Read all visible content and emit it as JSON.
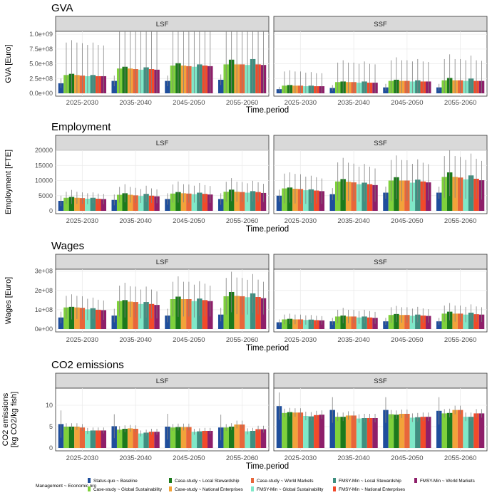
{
  "x_title": "Time.period",
  "legend": {
    "title": "Management ~ Economic pro",
    "items": [
      {
        "label": "Status-quo ~ Baseline",
        "color": "#1f4e9c"
      },
      {
        "label": "Case-study ~ Global Sustainability",
        "color": "#7fd13b"
      },
      {
        "label": "Case-study ~ Local Stewardship",
        "color": "#1c7a1c"
      },
      {
        "label": "Case-study ~ National Enterprises",
        "color": "#f2a33a"
      },
      {
        "label": "Case-study ~ World Markets",
        "color": "#e8663a"
      },
      {
        "label": "FMSY-Min ~ Global Sustainability",
        "color": "#7fe8c8"
      },
      {
        "label": "FMSY-Min ~ Local Stewardship",
        "color": "#3f8f80"
      },
      {
        "label": "FMSY-Min ~ National Enterprises",
        "color": "#f24a2a"
      },
      {
        "label": "FMSY-Min ~ World Markets",
        "color": "#8e1f6a"
      }
    ]
  },
  "chart_data": [
    {
      "type": "bar",
      "title": "GVA",
      "ylabel": "GVA [Euro]",
      "ylim": [
        0,
        1050000000.0
      ],
      "yticks": [
        0,
        250000000.0,
        500000000.0,
        750000000.0,
        1000000000.0
      ],
      "yticklabels": [
        "0.0e+00",
        "2.5e+08",
        "5.0e+08",
        "7.5e+08",
        "1.0e+09"
      ],
      "categories": [
        "2025-2030",
        "2035-2040",
        "2045-2050",
        "2055-2060"
      ],
      "facets": [
        {
          "name": "LSF",
          "values": [
            [
              170000000.0,
              310000000.0,
              330000000.0,
              310000000.0,
              300000000.0,
              290000000.0,
              310000000.0,
              290000000.0,
              290000000.0
            ],
            [
              210000000.0,
              420000000.0,
              450000000.0,
              420000000.0,
              410000000.0,
              400000000.0,
              440000000.0,
              410000000.0,
              400000000.0
            ],
            [
              210000000.0,
              470000000.0,
              510000000.0,
              470000000.0,
              460000000.0,
              450000000.0,
              490000000.0,
              470000000.0,
              460000000.0
            ],
            [
              230000000.0,
              490000000.0,
              570000000.0,
              490000000.0,
              490000000.0,
              480000000.0,
              580000000.0,
              490000000.0,
              480000000.0
            ]
          ],
          "err": [
            [
              80000000.0,
              550000000.0,
              570000000.0,
              550000000.0,
              550000000.0,
              530000000.0,
              550000000.0,
              530000000.0,
              520000000.0
            ],
            [
              90000000.0,
              800000000.0,
              830000000.0,
              800000000.0,
              780000000.0,
              760000000.0,
              800000000.0,
              760000000.0,
              740000000.0
            ],
            [
              90000000.0,
              880000000.0,
              950000000.0,
              880000000.0,
              860000000.0,
              840000000.0,
              900000000.0,
              840000000.0,
              820000000.0
            ],
            [
              90000000.0,
              880000000.0,
              970000000.0,
              860000000.0,
              860000000.0,
              840000000.0,
              900000000.0,
              860000000.0,
              820000000.0
            ]
          ]
        },
        {
          "name": "SSF",
          "values": [
            [
              70000000.0,
              130000000.0,
              140000000.0,
              130000000.0,
              130000000.0,
              120000000.0,
              130000000.0,
              120000000.0,
              120000000.0
            ],
            [
              90000000.0,
              190000000.0,
              200000000.0,
              190000000.0,
              190000000.0,
              180000000.0,
              200000000.0,
              180000000.0,
              180000000.0
            ],
            [
              100000000.0,
              210000000.0,
              230000000.0,
              210000000.0,
              210000000.0,
              200000000.0,
              220000000.0,
              200000000.0,
              200000000.0
            ],
            [
              100000000.0,
              220000000.0,
              260000000.0,
              220000000.0,
              220000000.0,
              210000000.0,
              250000000.0,
              210000000.0,
              210000000.0
            ]
          ],
          "err": [
            [
              40000000.0,
              240000000.0,
              250000000.0,
              240000000.0,
              240000000.0,
              230000000.0,
              230000000.0,
              220000000.0,
              220000000.0
            ],
            [
              50000000.0,
              330000000.0,
              360000000.0,
              330000000.0,
              330000000.0,
              320000000.0,
              340000000.0,
              320000000.0,
              310000000.0
            ],
            [
              60000000.0,
              350000000.0,
              380000000.0,
              350000000.0,
              350000000.0,
              340000000.0,
              360000000.0,
              340000000.0,
              330000000.0
            ],
            [
              60000000.0,
              360000000.0,
              400000000.0,
              360000000.0,
              360000000.0,
              350000000.0,
              390000000.0,
              350000000.0,
              340000000.0
            ]
          ]
        }
      ]
    },
    {
      "type": "bar",
      "title": "Employment",
      "ylabel": "Employment [FTE]",
      "ylim": [
        0,
        20000
      ],
      "yticks": [
        0,
        5000,
        10000,
        15000,
        20000
      ],
      "yticklabels": [
        "0",
        "5000",
        "10000",
        "15000",
        "20000"
      ],
      "categories": [
        "2025-2030",
        "2035-2040",
        "2045-2050",
        "2055-2060"
      ],
      "facets": [
        {
          "name": "LSF",
          "values": [
            [
              3300,
              4300,
              4600,
              4300,
              4200,
              4000,
              4300,
              4000,
              3900
            ],
            [
              3600,
              5300,
              5800,
              5300,
              5100,
              4900,
              5600,
              5000,
              4800
            ],
            [
              3900,
              5700,
              6200,
              5800,
              5700,
              5500,
              6000,
              5600,
              5400
            ],
            [
              3900,
              6300,
              7000,
              6300,
              6200,
              6000,
              6500,
              6200,
              5900
            ]
          ],
          "err": [
            [
              1700,
              2000,
              2300,
              2000,
              1900,
              1800,
              1800,
              1700,
              1700
            ],
            [
              1800,
              2600,
              3000,
              2600,
              2500,
              2300,
              2700,
              2400,
              2300
            ],
            [
              1900,
              3000,
              3500,
              3000,
              3000,
              2800,
              3200,
              2900,
              2800
            ],
            [
              1900,
              3300,
              3800,
              3300,
              3300,
              3100,
              3400,
              3200,
              3000
            ]
          ]
        },
        {
          "name": "SSF",
          "values": [
            [
              5000,
              7400,
              7700,
              7300,
              7200,
              6800,
              7100,
              6700,
              6500
            ],
            [
              5500,
              9700,
              10500,
              9600,
              9400,
              8800,
              9300,
              8800,
              8500
            ],
            [
              6000,
              10000,
              11100,
              10000,
              10000,
              9300,
              10300,
              9700,
              9400
            ],
            [
              6000,
              11200,
              12700,
              11200,
              11000,
              10400,
              11700,
              10600,
              10100
            ]
          ],
          "err": [
            [
              2000,
              4900,
              5000,
              4900,
              4900,
              4500,
              4500,
              4400,
              4200
            ],
            [
              2000,
              6300,
              7000,
              6300,
              6200,
              5800,
              6200,
              5800,
              5500
            ],
            [
              2000,
              6800,
              7200,
              6800,
              6700,
              6200,
              6700,
              6200,
              6000
            ],
            [
              2000,
              6900,
              7800,
              6900,
              6800,
              6400,
              7200,
              6600,
              6400
            ]
          ]
        }
      ]
    },
    {
      "type": "bar",
      "title": "Wages",
      "ylabel": "Wages [Euro]",
      "ylim": [
        0,
        310000000.0
      ],
      "yticks": [
        0,
        100000000.0,
        200000000.0,
        300000000.0
      ],
      "yticklabels": [
        "0e+00",
        "1e+08",
        "2e+08",
        "3e+08"
      ],
      "categories": [
        "2025-2030",
        "2035-2040",
        "2045-2050",
        "2055-2060"
      ],
      "facets": [
        {
          "name": "LSF",
          "values": [
            [
              60000000.0,
              112000000.0,
              115000000.0,
              112000000.0,
              110000000.0,
              102000000.0,
              108000000.0,
              100000000.0,
              98000000.0
            ],
            [
              70000000.0,
              145000000.0,
              150000000.0,
              142000000.0,
              140000000.0,
              130000000.0,
              140000000.0,
              130000000.0,
              125000000.0
            ],
            [
              70000000.0,
              155000000.0,
              168000000.0,
              155000000.0,
              155000000.0,
              145000000.0,
              158000000.0,
              150000000.0,
              145000000.0
            ],
            [
              75000000.0,
              170000000.0,
              192000000.0,
              172000000.0,
              170000000.0,
              165000000.0,
              185000000.0,
              166000000.0,
              160000000.0
            ]
          ],
          "err": [
            [
              30000000.0,
              60000000.0,
              65000000.0,
              60000000.0,
              60000000.0,
              55000000.0,
              55000000.0,
              52000000.0,
              50000000.0
            ],
            [
              35000000.0,
              80000000.0,
              90000000.0,
              80000000.0,
              80000000.0,
              75000000.0,
              80000000.0,
              75000000.0,
              70000000.0
            ],
            [
              35000000.0,
              90000000.0,
              105000000.0,
              90000000.0,
              90000000.0,
              85000000.0,
              90000000.0,
              85000000.0,
              80000000.0
            ],
            [
              35000000.0,
              95000000.0,
              105000000.0,
              95000000.0,
              95000000.0,
              90000000.0,
              100000000.0,
              90000000.0,
              85000000.0
            ]
          ]
        },
        {
          "name": "SSF",
          "values": [
            [
              35000000.0,
              50000000.0,
              53000000.0,
              50000000.0,
              50000000.0,
              47000000.0,
              49000000.0,
              46000000.0,
              45000000.0
            ],
            [
              40000000.0,
              65000000.0,
              70000000.0,
              65000000.0,
              65000000.0,
              60000000.0,
              65000000.0,
              60000000.0,
              58000000.0
            ],
            [
              40000000.0,
              73000000.0,
              78000000.0,
              73000000.0,
              73000000.0,
              69000000.0,
              75000000.0,
              70000000.0,
              68000000.0
            ],
            [
              40000000.0,
              80000000.0,
              90000000.0,
              80000000.0,
              80000000.0,
              75000000.0,
              85000000.0,
              77000000.0,
              75000000.0
            ]
          ],
          "err": [
            [
              15000000.0,
              25000000.0,
              27000000.0,
              25000000.0,
              25000000.0,
              24000000.0,
              24000000.0,
              23000000.0,
              22000000.0
            ],
            [
              18000000.0,
              35000000.0,
              40000000.0,
              35000000.0,
              35000000.0,
              33000000.0,
              35000000.0,
              33000000.0,
              31000000.0
            ],
            [
              18000000.0,
              40000000.0,
              42000000.0,
              40000000.0,
              40000000.0,
              37000000.0,
              40000000.0,
              37000000.0,
              35000000.0
            ],
            [
              18000000.0,
              42000000.0,
              45000000.0,
              42000000.0,
              42000000.0,
              40000000.0,
              43000000.0,
              40000000.0,
              38000000.0
            ]
          ]
        }
      ]
    },
    {
      "type": "bar",
      "title": "CO2 emissions",
      "ylabel": "CO2 emissions\n[kg CO2/kg fish]",
      "ylim": [
        0,
        14
      ],
      "yticks": [
        0,
        5,
        10
      ],
      "yticklabels": [
        "0",
        "5",
        "10"
      ],
      "categories": [
        "2025-2030",
        "2035-2040",
        "2045-2050",
        "2055-2060"
      ],
      "facets": [
        {
          "name": "LSF",
          "values": [
            [
              5.6,
              5.0,
              5.0,
              5.0,
              4.8,
              4.0,
              4.1,
              4.1,
              4.1
            ],
            [
              5.1,
              4.3,
              4.5,
              4.6,
              4.5,
              3.4,
              3.6,
              3.8,
              3.8
            ],
            [
              5.0,
              4.8,
              4.9,
              4.9,
              4.9,
              3.8,
              3.9,
              4.0,
              4.0
            ],
            [
              4.8,
              4.8,
              5.0,
              5.5,
              5.5,
              3.9,
              4.0,
              4.4,
              4.4
            ]
          ],
          "err": [
            [
              3.2,
              0.8,
              0.8,
              0.8,
              0.8,
              0.7,
              0.7,
              0.7,
              0.7
            ],
            [
              2.8,
              0.8,
              0.8,
              0.8,
              0.8,
              0.7,
              0.7,
              0.7,
              0.7
            ],
            [
              3.0,
              0.8,
              0.8,
              0.8,
              0.8,
              0.7,
              0.7,
              0.7,
              0.7
            ],
            [
              3.0,
              0.8,
              0.8,
              0.9,
              0.9,
              0.7,
              0.7,
              0.8,
              0.8
            ]
          ]
        },
        {
          "name": "SSF",
          "values": [
            [
              9.8,
              8.2,
              8.4,
              8.3,
              8.3,
              7.5,
              7.4,
              7.7,
              7.8
            ],
            [
              8.9,
              7.3,
              7.3,
              7.6,
              7.6,
              6.9,
              7.0,
              7.0,
              7.0
            ],
            [
              8.9,
              7.9,
              7.8,
              8.0,
              8.0,
              7.1,
              7.2,
              7.3,
              7.3
            ],
            [
              8.7,
              8.1,
              8.2,
              8.9,
              8.9,
              7.3,
              7.3,
              8.1,
              8.1
            ]
          ],
          "err": [
            [
              3.2,
              1.0,
              1.0,
              1.0,
              1.0,
              1.0,
              1.0,
              1.0,
              1.0
            ],
            [
              3.0,
              1.0,
              1.0,
              1.0,
              1.0,
              1.0,
              1.0,
              1.0,
              1.0
            ],
            [
              3.0,
              1.0,
              1.0,
              1.0,
              1.0,
              1.0,
              1.0,
              1.0,
              1.0
            ],
            [
              3.2,
              1.0,
              1.0,
              1.0,
              1.0,
              1.0,
              1.0,
              1.0,
              1.0
            ]
          ]
        }
      ]
    }
  ]
}
